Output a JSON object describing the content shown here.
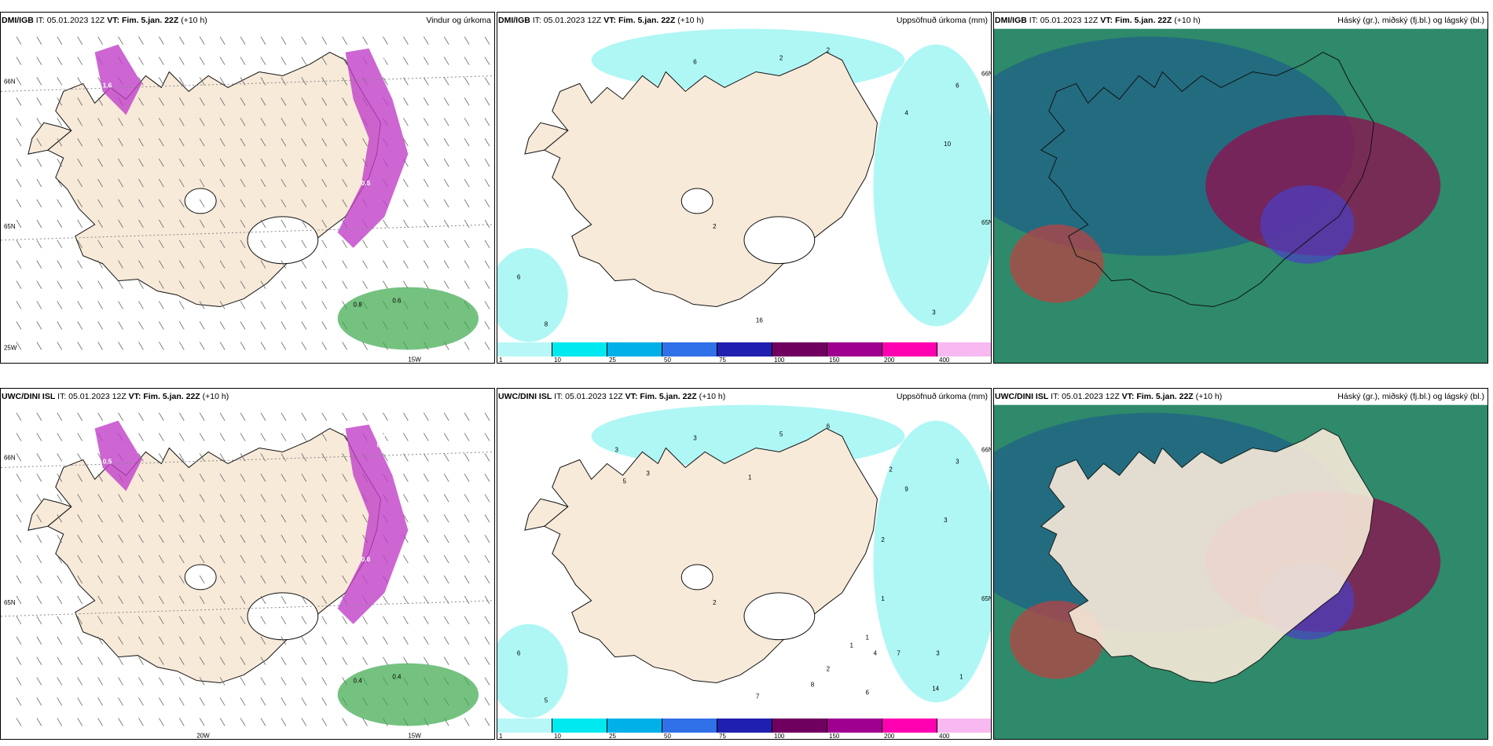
{
  "panels": [
    {
      "model": "DMI/IGB",
      "it": "IT: 05.01.2023 12Z",
      "vt_label": "VT:",
      "vt": "Fim. 5.jan. 22Z",
      "lead": "(+10 h)",
      "title": "Vindur og úrkoma",
      "type": "wind",
      "lat_labels": [
        "66N",
        "65N",
        "25W"
      ],
      "lon_labels": [
        "15W"
      ],
      "values": [
        "0.5",
        "0.8",
        "0.6",
        "1.6",
        "0.5",
        "0.1"
      ]
    },
    {
      "model": "DMI/IGB",
      "it": "IT: 05.01.2023 12Z",
      "vt_label": "VT:",
      "vt": "Fim. 5.jan. 22Z",
      "lead": "(+10 h)",
      "title": "Uppsöfnuð úrkoma (mm)",
      "type": "precip",
      "lat_labels": [
        "66N",
        "65N"
      ],
      "values": [
        "6",
        "2",
        "2",
        "6",
        "4",
        "10",
        "2",
        "6",
        "8",
        "16",
        "3"
      ]
    },
    {
      "model": "DMI/IGB",
      "it": "IT: 05.01.2023 12Z",
      "vt_label": "VT:",
      "vt": "Fim. 5.jan. 22Z",
      "lead": "(+10 h)",
      "title": "Háský (gr.), miðský (fj.bl.) og lágský (bl.)",
      "type": "cloud"
    },
    {
      "model": "UWC/DINI ISL",
      "it": "IT: 05.01.2023 12Z",
      "vt_label": "VT:",
      "vt": "Fim. 5.jan. 22Z",
      "lead": "(+10 h)",
      "title": "",
      "type": "wind",
      "lat_labels": [
        "66N",
        "65N"
      ],
      "lon_labels": [
        "20W",
        "15W"
      ],
      "values": [
        "2.1",
        "0.4",
        "0.4",
        "0.5",
        "0.6",
        "1.1",
        "0.5"
      ]
    },
    {
      "model": "UWC/DINI ISL",
      "it": "IT: 05.01.2023 12Z",
      "vt_label": "VT:",
      "vt": "Fim. 5.jan. 22Z",
      "lead": "(+10 h)",
      "title": "Uppsöfnuð úrkoma (mm)",
      "type": "precip",
      "lat_labels": [
        "66N",
        "65N"
      ],
      "values": [
        "3",
        "5",
        "6",
        "3",
        "9",
        "3",
        "2",
        "6",
        "5",
        "7",
        "14",
        "3",
        "1",
        "5",
        "3",
        "2",
        "2",
        "1",
        "4",
        "7",
        "6",
        "8",
        "2",
        "1",
        "1",
        "3",
        "1"
      ]
    },
    {
      "model": "UWC/DINI ISL",
      "it": "IT: 05.01.2023 12Z",
      "vt_label": "VT:",
      "vt": "Fim. 5.jan. 22Z",
      "lead": "(+10 h)",
      "title": "Háský (gr.), miðský (fj.bl.) og lágský (bl.)",
      "type": "cloud"
    }
  ],
  "legend": {
    "labels": [
      "1",
      "10",
      "25",
      "50",
      "75",
      "100",
      "150",
      "200",
      "400"
    ],
    "colors": [
      "#b8f7f7",
      "#00e8f0",
      "#00b0e8",
      "#3070e8",
      "#2020b0",
      "#700060",
      "#a00090",
      "#ff00b0",
      "#f8b8f0"
    ]
  },
  "colors": {
    "land": "#f7ead9",
    "sea_precip": "#aef7f5",
    "cloud_high": "#2e8a6a",
    "cloud_mid": "#1f5f8a",
    "cloud_low": "#4a3fc4",
    "snow": "#c040c8",
    "rain_green": "#3aa84a"
  }
}
